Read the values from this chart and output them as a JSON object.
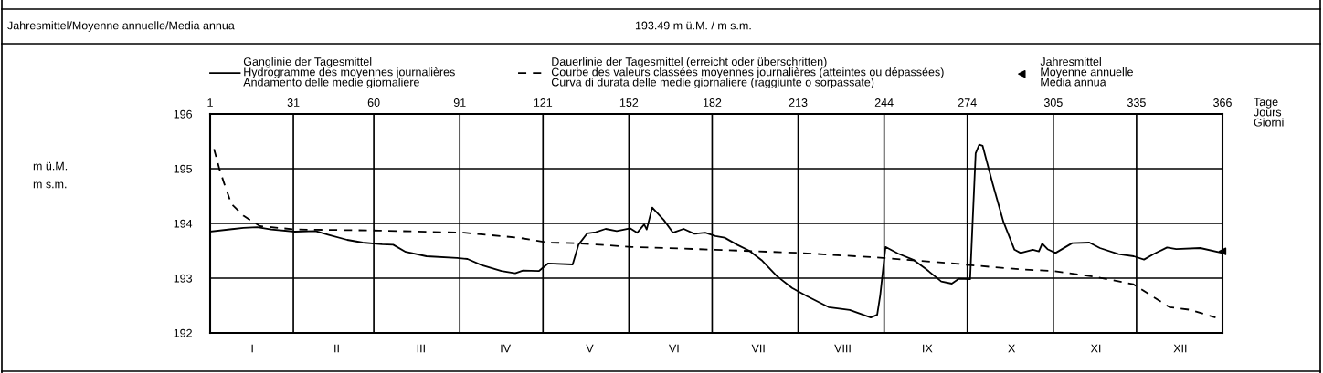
{
  "chart_data": {
    "type": "line",
    "annotations": [
      "Jahresmittel/Moyenne annuelle/Media annua",
      "193.49 m ü.M. / m s.m.",
      "m ü.M.\nm s.m.",
      "I",
      "II",
      "III",
      "IV",
      "V",
      "VI",
      "VII",
      "VIII",
      "IX",
      "X",
      "XI",
      "XII"
    ],
    "xlabel": "Tage\nJours\nGiorni",
    "xlim": [
      1,
      366
    ],
    "xticks": [
      1,
      31,
      60,
      91,
      121,
      152,
      182,
      213,
      244,
      274,
      305,
      335,
      366
    ],
    "ylim": [
      192,
      196
    ],
    "yticks": [
      192,
      193,
      194,
      195,
      196
    ],
    "grid": true,
    "legend": "top",
    "series": [
      {
        "name": "Ganglinie der Tagesmittel\nHydrogramme des moyennes journalières\nAndamento delle medie giornaliere",
        "color": "#000000",
        "line_style": "solid",
        "x": [
          1,
          13,
          18,
          23,
          31.6,
          39,
          43.8,
          50.4,
          56,
          63,
          67,
          71.5,
          79,
          90,
          93.8,
          98.8,
          106,
          111,
          113.8,
          119.5,
          122.9,
          131.7,
          133.8,
          137,
          140,
          143.6,
          147.6,
          152.5,
          155,
          157.5,
          158.4,
          160.4,
          164.6,
          167.9,
          171.7,
          175.6,
          179.5,
          183.2,
          186.5,
          191,
          195.4,
          199.8,
          205.3,
          210.8,
          216.2,
          224,
          231.6,
          239.2,
          241.5,
          242.6,
          244.5,
          249,
          254.7,
          259,
          264.6,
          268.4,
          271,
          275,
          277,
          278.3,
          279.5,
          283,
          287,
          291,
          293.2,
          297.6,
          299.8,
          301,
          302.9,
          305.8,
          311.8,
          318,
          321.8,
          328.5,
          334,
          337.7,
          341.5,
          346,
          349.3,
          358,
          366
        ],
        "values": [
          193.85,
          193.92,
          193.93,
          193.89,
          193.85,
          193.86,
          193.79,
          193.7,
          193.65,
          193.62,
          193.61,
          193.48,
          193.4,
          193.37,
          193.35,
          193.24,
          193.13,
          193.09,
          193.14,
          193.13,
          193.27,
          193.25,
          193.61,
          193.82,
          193.84,
          193.9,
          193.86,
          193.91,
          193.83,
          193.98,
          193.89,
          194.29,
          194.06,
          193.83,
          193.9,
          193.81,
          193.83,
          193.77,
          193.74,
          193.61,
          193.5,
          193.33,
          193.04,
          192.82,
          192.67,
          192.47,
          192.42,
          192.28,
          192.33,
          192.69,
          193.57,
          193.45,
          193.33,
          193.17,
          192.94,
          192.9,
          192.99,
          192.98,
          195.28,
          195.44,
          195.42,
          194.75,
          194.03,
          193.52,
          193.46,
          193.52,
          193.49,
          193.63,
          193.53,
          193.46,
          193.64,
          193.65,
          193.55,
          193.44,
          193.4,
          193.34,
          193.45,
          193.56,
          193.53,
          193.55,
          193.46
        ]
      },
      {
        "name": "Dauerlinie der Tagesmittel (erreicht oder überschritten)\nCourbe des valeurs classées moyennes journalières (atteintes ou dépassées)\nCurva di durata delle medie giornaliere (raggiunte o sorpassate)",
        "color": "#000000",
        "line_style": "dashed",
        "x": [
          2.4,
          4.3,
          6,
          8.6,
          13,
          19,
          31.6,
          61.8,
          92.6,
          112,
          122.9,
          132.7,
          153,
          183,
          214,
          243.7,
          271,
          274.5,
          293.2,
          305,
          320.6,
          333.8,
          346.9,
          354.6,
          363.5
        ],
        "values": [
          195.36,
          195.0,
          194.74,
          194.36,
          194.14,
          193.95,
          193.89,
          193.87,
          193.83,
          193.74,
          193.65,
          193.64,
          193.57,
          193.52,
          193.46,
          193.37,
          193.26,
          193.24,
          193.16,
          193.13,
          193.02,
          192.89,
          192.47,
          192.42,
          192.28
        ]
      },
      {
        "name": "Jahresmittel\nMoyenne annuelle\nMedia annua",
        "type": "scatter",
        "color": "#000000",
        "marker": "triangle",
        "x": [
          366
        ],
        "values": [
          193.49
        ]
      }
    ]
  }
}
